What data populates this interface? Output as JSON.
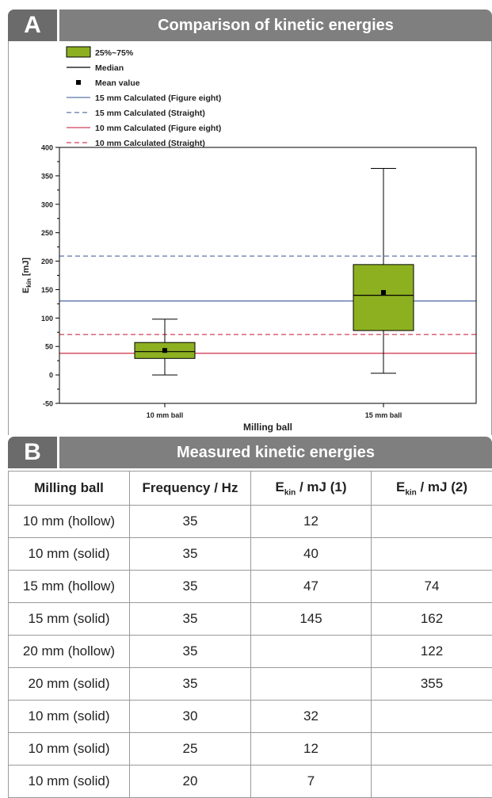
{
  "panel_a": {
    "letter": "A",
    "title": "Comparison of kinetic energies"
  },
  "panel_b": {
    "letter": "B",
    "title": "Measured kinetic energies"
  },
  "colors": {
    "box_fill": "#8db020",
    "line_15": "#5a74a6",
    "line_10": "#d2415a",
    "header_bg": "#7f7f7f"
  },
  "chart_data": {
    "type": "box",
    "ylabel_main": "E",
    "ylabel_sub": "kin",
    "ylabel_unit": "[mJ]",
    "xlabel": "Milling ball",
    "ylim": [
      -50,
      400
    ],
    "yticks": [
      -50,
      0,
      50,
      100,
      150,
      200,
      250,
      300,
      350,
      400
    ],
    "categories": [
      "10 mm ball",
      "15 mm ball"
    ],
    "boxes": [
      {
        "category": "10 mm ball",
        "whisker_low": 0,
        "q1": 29,
        "median": 41,
        "q3": 57,
        "whisker_high": 98,
        "mean": 43
      },
      {
        "category": "15 mm ball",
        "whisker_low": 3,
        "q1": 78,
        "median": 140,
        "q3": 194,
        "whisker_high": 363,
        "mean": 145
      }
    ],
    "reference_lines": [
      {
        "name": "15 mm Calculated (Figure eight)",
        "value": 130,
        "color": "#5a74a6",
        "dashed": false
      },
      {
        "name": "15 mm Calculated (Straight)",
        "value": 209,
        "color": "#5a74a6",
        "dashed": true
      },
      {
        "name": "10 mm Calculated (Figure eight)",
        "value": 38,
        "color": "#d2415a",
        "dashed": false
      },
      {
        "name": "10 mm Calculated (Straight)",
        "value": 71,
        "color": "#d2415a",
        "dashed": true
      }
    ],
    "legend": {
      "placement": "top-left",
      "box": "25%~75%",
      "median": "Median",
      "mean": "Mean value"
    }
  },
  "table": {
    "headers": {
      "ball": "Milling ball",
      "freq": "Frequency / Hz",
      "e1_main": "E",
      "e1_sub": "kin",
      "e1_rest": " / mJ (1)",
      "e2_main": "E",
      "e2_sub": "kin",
      "e2_rest": " / mJ (2)"
    },
    "rows": [
      {
        "ball": "10 mm (hollow)",
        "freq": "35",
        "e1": "12",
        "e2": ""
      },
      {
        "ball": "10 mm (solid)",
        "freq": "35",
        "e1": "40",
        "e2": ""
      },
      {
        "ball": "15 mm (hollow)",
        "freq": "35",
        "e1": "47",
        "e2": "74"
      },
      {
        "ball": "15 mm (solid)",
        "freq": "35",
        "e1": "145",
        "e2": "162"
      },
      {
        "ball": "20 mm (hollow)",
        "freq": "35",
        "e1": "",
        "e2": "122"
      },
      {
        "ball": "20 mm (solid)",
        "freq": "35",
        "e1": "",
        "e2": "355"
      },
      {
        "ball": "10 mm (solid)",
        "freq": "30",
        "e1": "32",
        "e2": ""
      },
      {
        "ball": "10 mm (solid)",
        "freq": "25",
        "e1": "12",
        "e2": ""
      },
      {
        "ball": "10 mm (solid)",
        "freq": "20",
        "e1": "7",
        "e2": ""
      }
    ]
  }
}
